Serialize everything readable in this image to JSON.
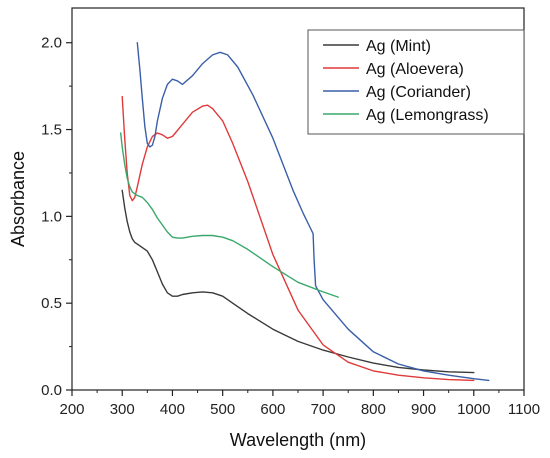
{
  "chart_data": {
    "type": "line",
    "xlabel": "Wavelength (nm)",
    "ylabel": "Absorbance",
    "xlim": [
      200,
      1100
    ],
    "ylim": [
      0.0,
      2.2
    ],
    "xticks": [
      200,
      300,
      400,
      500,
      600,
      700,
      800,
      900,
      1000,
      1100
    ],
    "xtick_labels": [
      "200",
      "300",
      "400",
      "500",
      "600",
      "700",
      "800",
      "900",
      "1000",
      "1100"
    ],
    "yticks": [
      0.0,
      0.5,
      1.0,
      1.5,
      2.0
    ],
    "ytick_labels": [
      "0.0",
      "0.5",
      "1.0",
      "1.5",
      "2.0"
    ],
    "grid": false,
    "legend_position": "top-right",
    "series": [
      {
        "name": "Ag (Mint)",
        "color": "#3a3a3a",
        "x": [
          300,
          305,
          310,
          315,
          320,
          325,
          330,
          340,
          350,
          360,
          370,
          380,
          390,
          400,
          410,
          420,
          440,
          460,
          480,
          500,
          520,
          550,
          600,
          650,
          700,
          750,
          800,
          850,
          900,
          950,
          1000
        ],
        "y": [
          1.15,
          1.05,
          0.97,
          0.91,
          0.87,
          0.85,
          0.84,
          0.82,
          0.8,
          0.75,
          0.68,
          0.61,
          0.56,
          0.54,
          0.54,
          0.55,
          0.56,
          0.565,
          0.56,
          0.54,
          0.5,
          0.44,
          0.35,
          0.28,
          0.23,
          0.19,
          0.155,
          0.13,
          0.115,
          0.105,
          0.1
        ]
      },
      {
        "name": "Ag (Aloevera)",
        "color": "#e03a3a",
        "x": [
          300,
          305,
          310,
          315,
          320,
          325,
          330,
          340,
          350,
          360,
          370,
          380,
          390,
          400,
          420,
          440,
          460,
          470,
          480,
          500,
          520,
          550,
          600,
          650,
          700,
          750,
          800,
          850,
          900,
          950,
          1000
        ],
        "y": [
          1.69,
          1.45,
          1.25,
          1.12,
          1.09,
          1.11,
          1.17,
          1.3,
          1.4,
          1.46,
          1.48,
          1.47,
          1.45,
          1.46,
          1.53,
          1.6,
          1.635,
          1.64,
          1.62,
          1.55,
          1.42,
          1.2,
          0.78,
          0.46,
          0.26,
          0.16,
          0.11,
          0.085,
          0.07,
          0.06,
          0.055
        ]
      },
      {
        "name": "Ag (Coriander)",
        "color": "#3a5fa8",
        "x": [
          330,
          335,
          340,
          345,
          350,
          355,
          360,
          365,
          370,
          380,
          390,
          400,
          410,
          420,
          440,
          460,
          480,
          495,
          510,
          530,
          560,
          600,
          640,
          660,
          675,
          680,
          682,
          685,
          700,
          750,
          800,
          850,
          900,
          950,
          1000,
          1030
        ],
        "y": [
          2.0,
          1.85,
          1.68,
          1.52,
          1.42,
          1.4,
          1.41,
          1.46,
          1.55,
          1.68,
          1.76,
          1.79,
          1.78,
          1.76,
          1.81,
          1.88,
          1.93,
          1.945,
          1.93,
          1.86,
          1.7,
          1.45,
          1.15,
          1.02,
          0.93,
          0.9,
          0.75,
          0.6,
          0.52,
          0.35,
          0.22,
          0.15,
          0.11,
          0.085,
          0.065,
          0.055
        ]
      },
      {
        "name": "Ag (Lemongrass)",
        "color": "#3aa86a",
        "x": [
          297,
          300,
          305,
          310,
          315,
          320,
          330,
          340,
          350,
          360,
          370,
          380,
          390,
          400,
          410,
          420,
          440,
          460,
          480,
          500,
          520,
          550,
          600,
          650,
          700,
          730
        ],
        "y": [
          1.48,
          1.4,
          1.3,
          1.22,
          1.17,
          1.14,
          1.12,
          1.11,
          1.08,
          1.04,
          0.99,
          0.95,
          0.91,
          0.88,
          0.875,
          0.875,
          0.885,
          0.89,
          0.89,
          0.88,
          0.86,
          0.81,
          0.71,
          0.62,
          0.565,
          0.535
        ]
      }
    ]
  }
}
